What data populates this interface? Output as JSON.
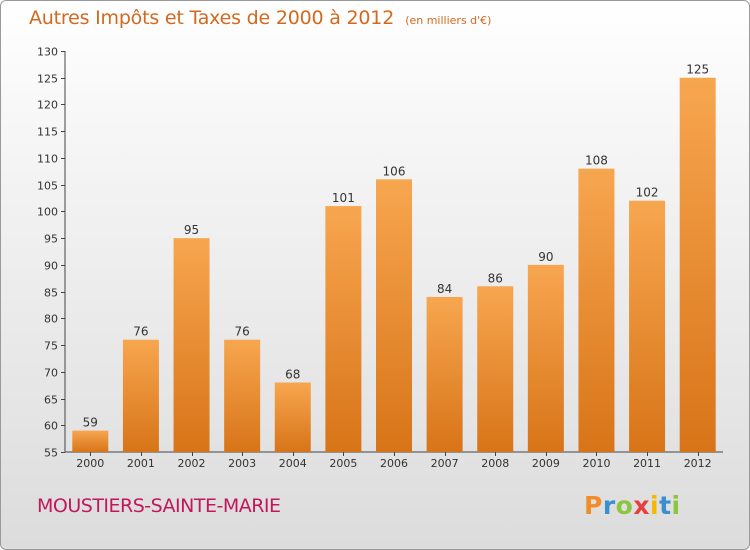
{
  "header": {
    "title": "Autres Impôts et Taxes de 2000 à 2012",
    "unit": "(en milliers d'€)"
  },
  "footer": {
    "town": "MOUSTIERS-SAINTE-MARIE",
    "logo": "Proxiti"
  },
  "colors": {
    "bar_top": "#f7a650",
    "bar_bottom": "#d87418",
    "title": "#d2691e",
    "town": "#c2185b"
  },
  "chart_data": {
    "type": "bar",
    "title": "Autres Impôts et Taxes de 2000 à 2012",
    "subtitle": "(en milliers d'€)",
    "xlabel": "",
    "ylabel": "",
    "categories": [
      "2000",
      "2001",
      "2002",
      "2003",
      "2004",
      "2005",
      "2006",
      "2007",
      "2008",
      "2009",
      "2010",
      "2011",
      "2012"
    ],
    "values": [
      59,
      76,
      95,
      76,
      68,
      101,
      106,
      84,
      86,
      90,
      108,
      102,
      125
    ],
    "ylim": [
      55,
      130
    ],
    "yticks": [
      55,
      60,
      65,
      70,
      75,
      80,
      85,
      90,
      95,
      100,
      105,
      110,
      115,
      120,
      125,
      130
    ],
    "grid": false,
    "data_labels": true
  }
}
